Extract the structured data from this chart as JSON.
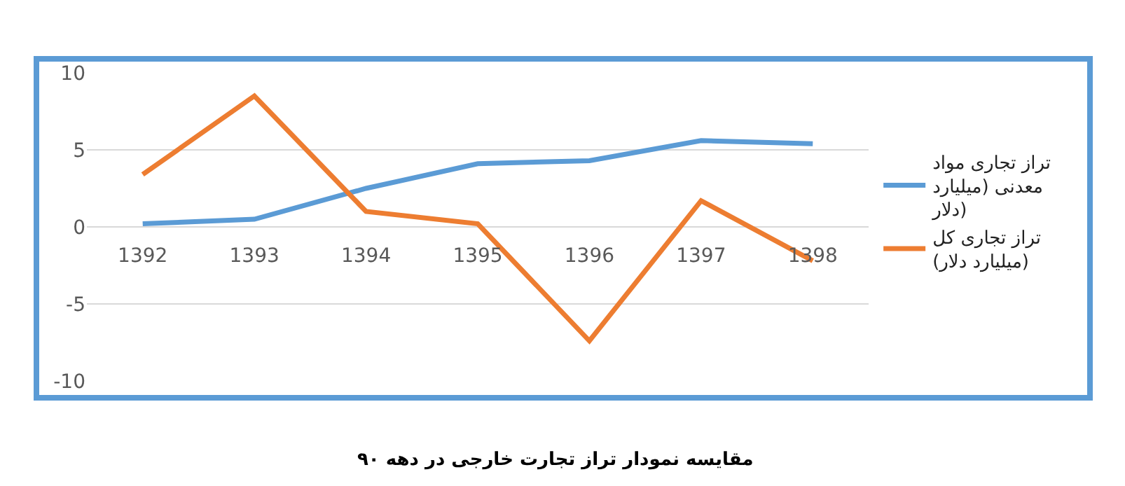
{
  "chart_data": {
    "type": "line",
    "categories": [
      "1392",
      "1393",
      "1394",
      "1395",
      "1396",
      "1397",
      "1398"
    ],
    "series": [
      {
        "name": "تراز تجاری مواد معدنی (میلیارد دلار)",
        "color": "#5b9bd5",
        "values": [
          0.2,
          0.5,
          2.5,
          4.1,
          4.3,
          5.6,
          5.4
        ]
      },
      {
        "name": "تراز تجاری کل (میلیارد دلار)",
        "color": "#ed7d31",
        "values": [
          3.4,
          8.5,
          1.0,
          0.2,
          -7.4,
          1.7,
          -2.2
        ]
      }
    ],
    "ylim": [
      -10,
      10
    ],
    "yticks": [
      -10,
      -5,
      0,
      5,
      10
    ],
    "grid": "y",
    "legend": "right",
    "line_style": "solid",
    "marker": "none",
    "annotations": [
      "مقایسه نمودار تراز تجارت خارجی در دهه ۹۰"
    ]
  }
}
